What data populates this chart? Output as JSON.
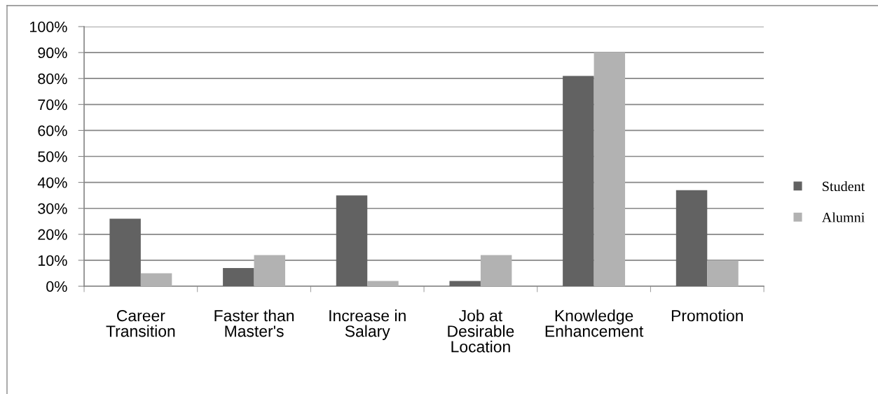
{
  "chart_data": {
    "type": "bar",
    "categories": [
      "Career\nTransition",
      "Faster than\nMaster's",
      "Increase in\nSalary",
      "Job at\nDesirable\nLocation",
      "Knowledge\nEnhancement",
      "Promotion"
    ],
    "series": [
      {
        "name": "Student",
        "color": "#626262",
        "values": [
          26,
          7,
          35,
          2,
          81,
          37
        ]
      },
      {
        "name": "Alumni",
        "color": "#b2b2b2",
        "values": [
          5,
          12,
          2,
          12,
          90,
          10
        ]
      }
    ],
    "ylim": [
      0,
      100
    ],
    "yticks": [
      {
        "value": 0,
        "label": "0%"
      },
      {
        "value": 10,
        "label": "10%"
      },
      {
        "value": 20,
        "label": "20%"
      },
      {
        "value": 30,
        "label": "30%"
      },
      {
        "value": 40,
        "label": "40%"
      },
      {
        "value": 50,
        "label": "50%"
      },
      {
        "value": 60,
        "label": "60%"
      },
      {
        "value": 70,
        "label": "70%"
      },
      {
        "value": 80,
        "label": "80%"
      },
      {
        "value": 90,
        "label": "90%"
      },
      {
        "value": 100,
        "label": "100%"
      }
    ],
    "grid": "y",
    "legend": "right"
  }
}
